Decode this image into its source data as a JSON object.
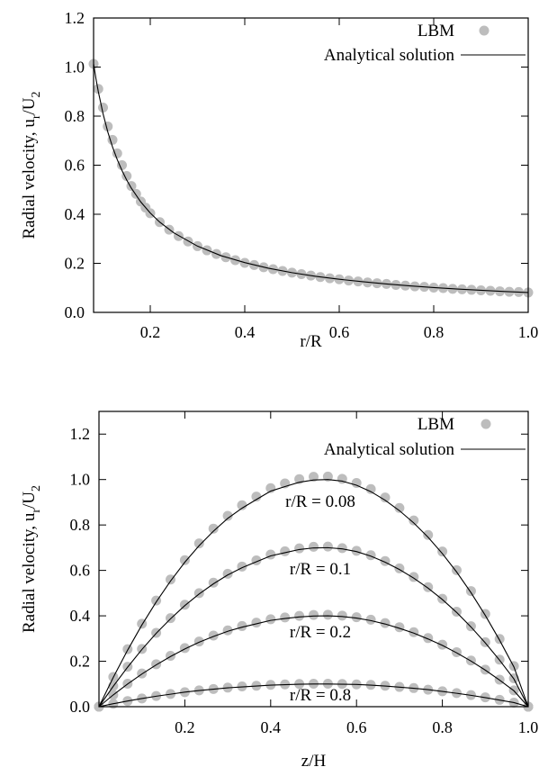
{
  "chart_data": [
    {
      "type": "scatter",
      "xlabel": "r/R",
      "ylabel_main": "Radial velocity, u",
      "ylabel_sub1": "r",
      "ylabel_mid": "/U",
      "ylabel_sub2": "2",
      "xlim": [
        0.08,
        1.0
      ],
      "ylim": [
        0.0,
        1.2
      ],
      "xticks": [
        0.2,
        0.4,
        0.6,
        0.8,
        1.0
      ],
      "yticks": [
        0.0,
        0.2,
        0.4,
        0.6,
        0.8,
        1.0,
        1.2
      ],
      "legend_position": "top-right",
      "series": [
        {
          "name": "LBM",
          "marker": "circle",
          "color": "#bdbdbd",
          "x": [
            0.08,
            0.09,
            0.1,
            0.11,
            0.12,
            0.13,
            0.14,
            0.15,
            0.16,
            0.17,
            0.18,
            0.19,
            0.2,
            0.22,
            0.24,
            0.26,
            0.28,
            0.3,
            0.32,
            0.34,
            0.36,
            0.38,
            0.4,
            0.42,
            0.44,
            0.46,
            0.48,
            0.5,
            0.52,
            0.54,
            0.56,
            0.58,
            0.6,
            0.62,
            0.64,
            0.66,
            0.68,
            0.7,
            0.72,
            0.74,
            0.76,
            0.78,
            0.8,
            0.82,
            0.84,
            0.86,
            0.88,
            0.9,
            0.92,
            0.94,
            0.96,
            0.98,
            1.0
          ],
          "y": [
            1.013,
            0.911,
            0.835,
            0.758,
            0.703,
            0.648,
            0.6,
            0.556,
            0.515,
            0.483,
            0.452,
            0.427,
            0.404,
            0.368,
            0.337,
            0.311,
            0.289,
            0.27,
            0.253,
            0.238,
            0.225,
            0.213,
            0.202,
            0.193,
            0.184,
            0.176,
            0.169,
            0.162,
            0.156,
            0.15,
            0.144,
            0.139,
            0.135,
            0.13,
            0.126,
            0.122,
            0.119,
            0.116,
            0.112,
            0.109,
            0.106,
            0.104,
            0.101,
            0.099,
            0.096,
            0.094,
            0.092,
            0.09,
            0.088,
            0.086,
            0.084,
            0.083,
            0.081
          ]
        },
        {
          "name": "Analytical solution",
          "line": "solid",
          "color": "#000000",
          "x": [
            0.08,
            0.085,
            0.09,
            0.1,
            0.11,
            0.12,
            0.13,
            0.14,
            0.15,
            0.16,
            0.18,
            0.2,
            0.22,
            0.25,
            0.3,
            0.35,
            0.4,
            0.45,
            0.5,
            0.55,
            0.6,
            0.65,
            0.7,
            0.75,
            0.8,
            0.85,
            0.9,
            0.95,
            1.0
          ],
          "y": [
            1.013,
            0.953,
            0.9,
            0.81,
            0.736,
            0.675,
            0.623,
            0.579,
            0.54,
            0.506,
            0.45,
            0.405,
            0.368,
            0.324,
            0.27,
            0.231,
            0.203,
            0.18,
            0.162,
            0.147,
            0.135,
            0.125,
            0.116,
            0.108,
            0.101,
            0.095,
            0.09,
            0.085,
            0.081
          ]
        }
      ]
    },
    {
      "type": "scatter",
      "xlabel": "z/H",
      "ylabel_main": "Radial velocity, u",
      "ylabel_sub1": "r",
      "ylabel_mid": "/U",
      "ylabel_sub2": "2",
      "xlim": [
        0.0,
        1.0
      ],
      "ylim": [
        0.0,
        1.3
      ],
      "xticks": [
        0.2,
        0.4,
        0.6,
        0.8,
        1.0
      ],
      "yticks": [
        0.0,
        0.2,
        0.4,
        0.6,
        0.8,
        1.0,
        1.2
      ],
      "legend_position": "top-right",
      "legend": [
        {
          "name": "LBM",
          "marker": "circle",
          "color": "#bdbdbd"
        },
        {
          "name": "Analytical solution",
          "line": "solid",
          "color": "#000000"
        }
      ],
      "z": [
        0.0,
        0.0333,
        0.0667,
        0.1,
        0.1333,
        0.1667,
        0.2,
        0.2333,
        0.2667,
        0.3,
        0.3333,
        0.3667,
        0.4,
        0.4333,
        0.4667,
        0.5,
        0.5333,
        0.5667,
        0.6,
        0.6333,
        0.6667,
        0.7,
        0.7333,
        0.7667,
        0.8,
        0.8333,
        0.8667,
        0.9,
        0.9333,
        0.9667,
        1.0
      ],
      "lbm_profiles": [
        {
          "label": "r/R = 0.08",
          "peak": 1.013,
          "y": [
            0.0,
            0.131,
            0.253,
            0.365,
            0.467,
            0.56,
            0.645,
            0.719,
            0.784,
            0.84,
            0.887,
            0.925,
            0.962,
            0.983,
            1.002,
            1.012,
            1.013,
            1.003,
            0.985,
            0.958,
            0.921,
            0.875,
            0.82,
            0.756,
            0.683,
            0.601,
            0.509,
            0.408,
            0.298,
            0.179,
            0.0
          ]
        },
        {
          "label": "r/R = 0.1",
          "peak": 0.705,
          "y": [
            0.0,
            0.091,
            0.176,
            0.254,
            0.325,
            0.39,
            0.449,
            0.5,
            0.546,
            0.585,
            0.617,
            0.644,
            0.67,
            0.684,
            0.697,
            0.704,
            0.705,
            0.698,
            0.686,
            0.667,
            0.641,
            0.609,
            0.571,
            0.526,
            0.475,
            0.418,
            0.354,
            0.284,
            0.207,
            0.125,
            0.0
          ]
        },
        {
          "label": "r/R = 0.2",
          "peak": 0.405,
          "y": [
            0.0,
            0.052,
            0.101,
            0.146,
            0.187,
            0.224,
            0.258,
            0.287,
            0.313,
            0.336,
            0.355,
            0.37,
            0.385,
            0.393,
            0.4,
            0.404,
            0.405,
            0.401,
            0.394,
            0.383,
            0.368,
            0.35,
            0.328,
            0.302,
            0.273,
            0.24,
            0.203,
            0.163,
            0.119,
            0.072,
            0.0
          ]
        },
        {
          "label": "r/R = 0.8",
          "peak": 0.101,
          "y": [
            0.0,
            0.013,
            0.025,
            0.036,
            0.047,
            0.056,
            0.064,
            0.072,
            0.078,
            0.084,
            0.089,
            0.092,
            0.096,
            0.098,
            0.1,
            0.101,
            0.101,
            0.1,
            0.098,
            0.096,
            0.092,
            0.087,
            0.082,
            0.075,
            0.068,
            0.06,
            0.051,
            0.041,
            0.03,
            0.018,
            0.0
          ]
        }
      ],
      "analytical_curves": [
        {
          "peak": 1.0,
          "y": [
            0.0,
            0.129,
            0.249,
            0.36,
            0.461,
            0.553,
            0.636,
            0.709,
            0.773,
            0.829,
            0.874,
            0.912,
            0.949,
            0.969,
            0.988,
            0.998,
            1.0,
            0.993,
            0.975,
            0.947,
            0.909,
            0.863,
            0.809,
            0.746,
            0.674,
            0.593,
            0.502,
            0.402,
            0.293,
            0.175,
            0.0
          ]
        },
        {
          "peak": 0.7,
          "y": [
            0.0,
            0.09,
            0.174,
            0.252,
            0.323,
            0.387,
            0.445,
            0.496,
            0.541,
            0.58,
            0.612,
            0.638,
            0.664,
            0.678,
            0.692,
            0.699,
            0.7,
            0.695,
            0.683,
            0.663,
            0.636,
            0.604,
            0.566,
            0.522,
            0.472,
            0.415,
            0.351,
            0.281,
            0.205,
            0.122,
            0.0
          ]
        },
        {
          "peak": 0.4,
          "y": [
            0.0,
            0.052,
            0.1,
            0.144,
            0.184,
            0.221,
            0.254,
            0.284,
            0.309,
            0.332,
            0.35,
            0.365,
            0.38,
            0.388,
            0.395,
            0.399,
            0.4,
            0.397,
            0.39,
            0.379,
            0.364,
            0.345,
            0.324,
            0.298,
            0.27,
            0.237,
            0.201,
            0.161,
            0.117,
            0.07,
            0.0
          ]
        },
        {
          "peak": 0.1,
          "y": [
            0.0,
            0.013,
            0.025,
            0.036,
            0.046,
            0.055,
            0.064,
            0.071,
            0.077,
            0.083,
            0.087,
            0.091,
            0.095,
            0.097,
            0.099,
            0.1,
            0.1,
            0.099,
            0.098,
            0.095,
            0.091,
            0.086,
            0.081,
            0.075,
            0.067,
            0.059,
            0.05,
            0.04,
            0.029,
            0.018,
            0.0
          ]
        }
      ]
    }
  ]
}
